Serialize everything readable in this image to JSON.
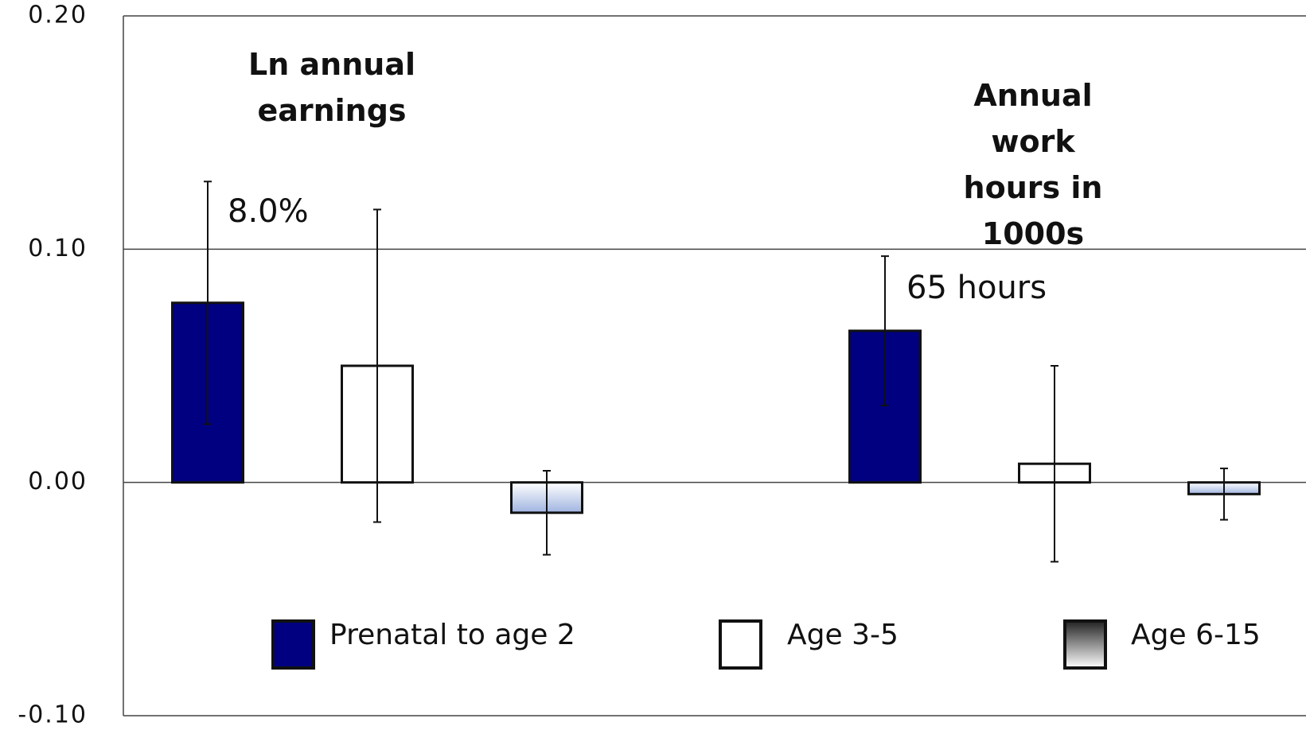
{
  "chart_data": {
    "type": "bar",
    "categories": [
      "Ln annual earnings",
      "Annual work hours in 1000s"
    ],
    "series": [
      {
        "name": "Prenatal to age 2",
        "color": "#000080",
        "values": [
          0.077,
          0.065
        ],
        "errors": [
          0.052,
          0.032
        ]
      },
      {
        "name": "Age 3-5",
        "color": "#ffffff",
        "values": [
          0.05,
          0.008
        ],
        "errors": [
          0.067,
          0.042
        ]
      },
      {
        "name": "Age 6-15",
        "color": "#b8c8e8",
        "values": [
          -0.013,
          -0.005
        ],
        "errors": [
          0.018,
          0.011
        ]
      }
    ],
    "annotations": [
      "8.0%",
      "65 hours"
    ],
    "ylim": [
      -0.1,
      0.2
    ],
    "yticks": [
      {
        "value": -0.1,
        "label": "-0.10"
      },
      {
        "value": 0,
        "label": "0.00"
      },
      {
        "value": 0.1,
        "label": "0.10"
      },
      {
        "value": 0.2,
        "label": "0.20"
      }
    ],
    "grid": true
  }
}
